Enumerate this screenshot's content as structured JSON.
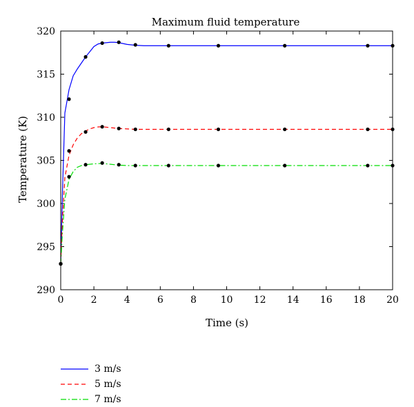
{
  "chart_data": {
    "type": "line",
    "title": "Maximum fluid temperature",
    "xlabel": "Time (s)",
    "ylabel": "Temperature (K)",
    "xlim": [
      0,
      20
    ],
    "ylim": [
      290,
      320
    ],
    "xticks": [
      0,
      2,
      4,
      6,
      8,
      10,
      12,
      14,
      16,
      18,
      20
    ],
    "yticks": [
      290,
      295,
      300,
      305,
      310,
      315,
      320
    ],
    "grid": false,
    "legend_position": "below",
    "series": [
      {
        "name": "3 m/s",
        "color": "#0000ff",
        "dash": "solid",
        "x": [
          0,
          0.1,
          0.25,
          0.5,
          0.75,
          1.0,
          1.25,
          1.5,
          1.75,
          2.0,
          2.25,
          2.5,
          2.75,
          3.0,
          3.25,
          3.5,
          3.75,
          4.0,
          4.5,
          5.0,
          5.5,
          6.0,
          8,
          10,
          12,
          14,
          16,
          18,
          20
        ],
        "y": [
          293.0,
          301.0,
          310.5,
          313.2,
          314.8,
          315.6,
          316.3,
          317.0,
          317.6,
          318.2,
          318.5,
          318.6,
          318.65,
          318.7,
          318.7,
          318.65,
          318.55,
          318.45,
          318.35,
          318.3,
          318.3,
          318.3,
          318.3,
          318.3,
          318.3,
          318.3,
          318.3,
          318.3,
          318.3
        ],
        "markers_x": [
          0,
          0.5,
          1.5,
          2.5,
          3.5,
          4.5,
          6.5,
          9.5,
          13.5,
          18.5,
          20
        ],
        "markers_y": [
          293.0,
          312.1,
          317.0,
          318.6,
          318.7,
          318.4,
          318.3,
          318.3,
          318.3,
          318.3,
          318.3
        ]
      },
      {
        "name": "5 m/s",
        "color": "#ff0000",
        "dash": "6,4",
        "x": [
          0,
          0.1,
          0.25,
          0.5,
          0.75,
          1.0,
          1.25,
          1.5,
          1.75,
          2.0,
          2.25,
          2.5,
          2.75,
          3.0,
          3.5,
          4.0,
          4.5,
          5.0,
          6.0,
          8,
          10,
          12,
          14,
          16,
          18,
          20
        ],
        "y": [
          293.0,
          298.0,
          303.0,
          305.6,
          306.8,
          307.6,
          308.1,
          308.4,
          308.65,
          308.8,
          308.88,
          308.9,
          308.85,
          308.8,
          308.7,
          308.65,
          308.6,
          308.6,
          308.6,
          308.6,
          308.6,
          308.6,
          308.6,
          308.6,
          308.6,
          308.6
        ],
        "markers_x": [
          0,
          0.5,
          1.5,
          2.5,
          3.5,
          4.5,
          6.5,
          9.5,
          13.5,
          18.5,
          20
        ],
        "markers_y": [
          293.0,
          306.1,
          308.3,
          308.9,
          308.7,
          308.6,
          308.6,
          308.6,
          308.6,
          308.6,
          308.6
        ]
      },
      {
        "name": "7 m/s",
        "color": "#00dd00",
        "dash": "8,3,2,3",
        "x": [
          0,
          0.1,
          0.25,
          0.5,
          0.75,
          1.0,
          1.25,
          1.5,
          2.0,
          2.5,
          3.0,
          3.5,
          4.0,
          4.5,
          5.0,
          6.0,
          8,
          10,
          12,
          14,
          16,
          18,
          20
        ],
        "y": [
          293.0,
          296.5,
          300.5,
          302.8,
          303.7,
          304.2,
          304.4,
          304.5,
          304.6,
          304.65,
          304.55,
          304.45,
          304.4,
          304.4,
          304.4,
          304.4,
          304.4,
          304.4,
          304.4,
          304.4,
          304.4,
          304.4,
          304.4
        ],
        "markers_x": [
          0,
          0.5,
          1.5,
          2.5,
          3.5,
          4.5,
          6.5,
          9.5,
          13.5,
          18.5,
          20
        ],
        "markers_y": [
          293.0,
          303.1,
          304.5,
          304.7,
          304.5,
          304.4,
          304.4,
          304.4,
          304.4,
          304.4,
          304.4
        ]
      }
    ]
  }
}
